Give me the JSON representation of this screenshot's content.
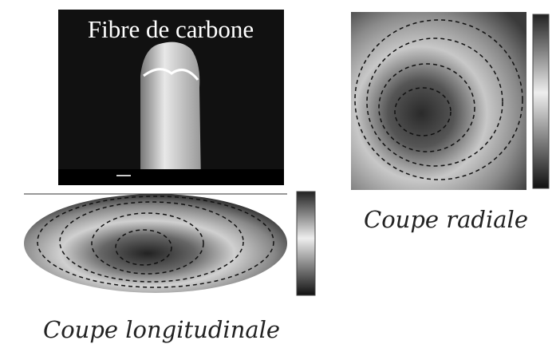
{
  "image_title": "Fibre de carbone",
  "panels": [
    {
      "caption": "Coupe radiale"
    },
    {
      "caption": "Coupe longitudinale"
    }
  ]
}
